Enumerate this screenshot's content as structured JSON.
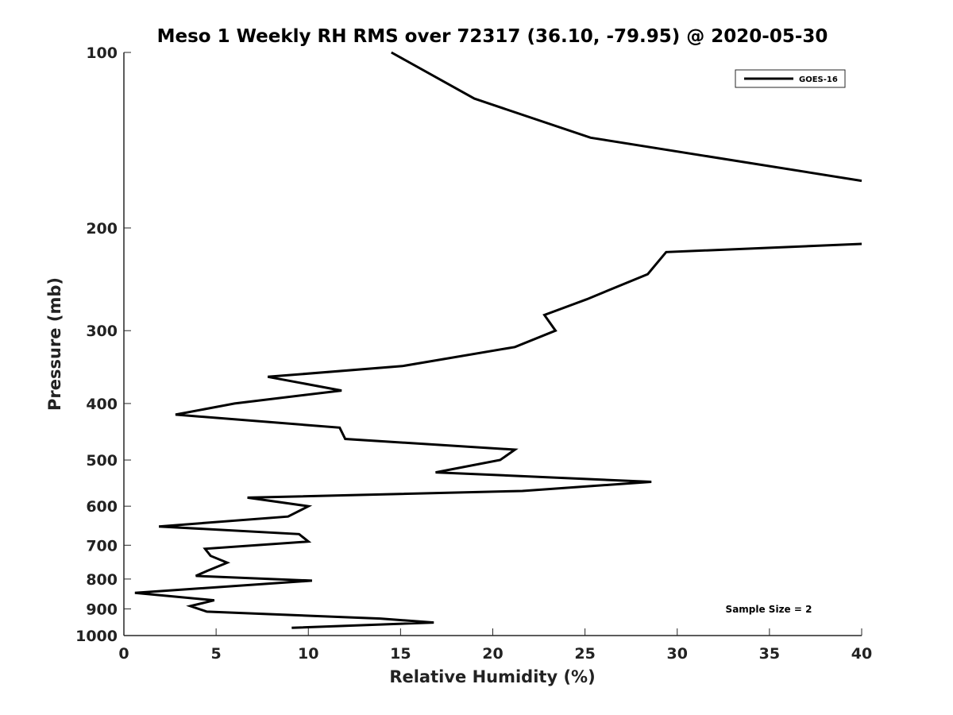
{
  "chart_data": {
    "type": "line",
    "title": "Meso 1 Weekly RH RMS over 72317 (36.10, -79.95) @ 2020-05-30",
    "xlabel": "Relative Humidity (%)",
    "ylabel": "Pressure (mb)",
    "xlim": [
      0,
      40
    ],
    "ylim": [
      100,
      1000
    ],
    "y_scale": "log",
    "y_reversed": true,
    "grid": false,
    "legend_position": "top-right",
    "x_ticks": [
      0,
      5,
      10,
      15,
      20,
      25,
      30,
      35,
      40
    ],
    "y_ticks": [
      100,
      200,
      300,
      400,
      500,
      600,
      700,
      800,
      900,
      1000
    ],
    "annotation": "Sample Size = 2",
    "series": [
      {
        "name": "GOES-16",
        "color": "#000000",
        "segments": [
          {
            "x": [
              14.5,
              19,
              25.3,
              40
            ],
            "y": [
              100,
              120,
              140,
              166
            ]
          },
          {
            "x": [
              40,
              29.4,
              28.4,
              25.1,
              22.8,
              23.4,
              21.2,
              15.1,
              7.8,
              11.8,
              6.0,
              2.8,
              11.7,
              12.0,
              21.2,
              20.4,
              16.9,
              28.6,
              21.6,
              6.7,
              10.0,
              8.9,
              1.9,
              9.5,
              10.0,
              4.4,
              4.7,
              5.6,
              4.5,
              3.9,
              10.2,
              0.6,
              4.9,
              3.6,
              4.5,
              13.9,
              16.8,
              9.1
            ],
            "y": [
              213,
              220,
              240,
              265,
              282,
              300,
              320,
              345,
              360,
              380,
              400,
              418,
              440,
              460,
              480,
              500,
              525,
              545,
              565,
              580,
              600,
              625,
              650,
              670,
              690,
              710,
              730,
              750,
              775,
              790,
              805,
              845,
              870,
              890,
              910,
              935,
              950,
              970
            ]
          }
        ]
      }
    ]
  }
}
